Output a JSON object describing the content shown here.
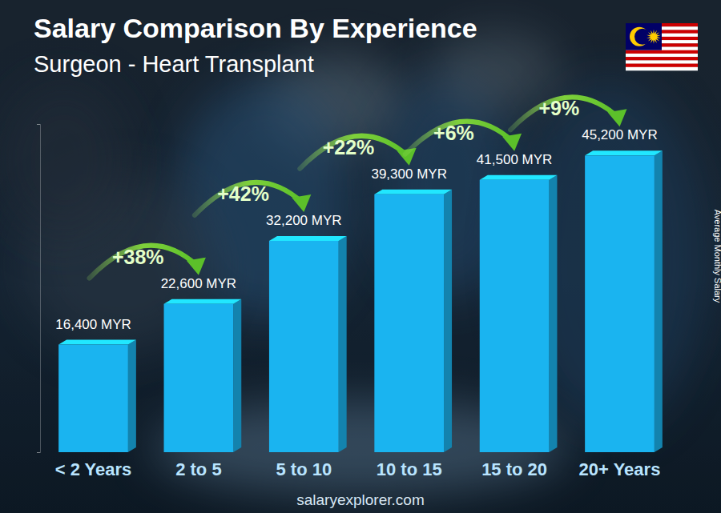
{
  "chart_data": {
    "type": "bar",
    "title": "Salary Comparison By Experience",
    "subtitle": "Surgeon - Heart Transplant",
    "y_label": "Average Monthly Salary",
    "categories": [
      "< 2 Years",
      "2 to 5",
      "5 to 10",
      "10 to 15",
      "15 to 20",
      "20+ Years"
    ],
    "values": [
      16400,
      22600,
      32200,
      39300,
      41500,
      45200
    ],
    "value_labels": [
      "16,400 MYR",
      "22,600 MYR",
      "32,200 MYR",
      "39,300 MYR",
      "41,500 MYR",
      "45,200 MYR"
    ],
    "annotations": [
      "+38%",
      "+42%",
      "+22%",
      "+6%",
      "+9%"
    ],
    "footer": "salaryexplorer.com",
    "color": "#1ab4f0",
    "ylim": [
      0,
      50000
    ],
    "yticks": [
      0,
      50000
    ],
    "tick_labels": "x",
    "data_labels": true
  }
}
